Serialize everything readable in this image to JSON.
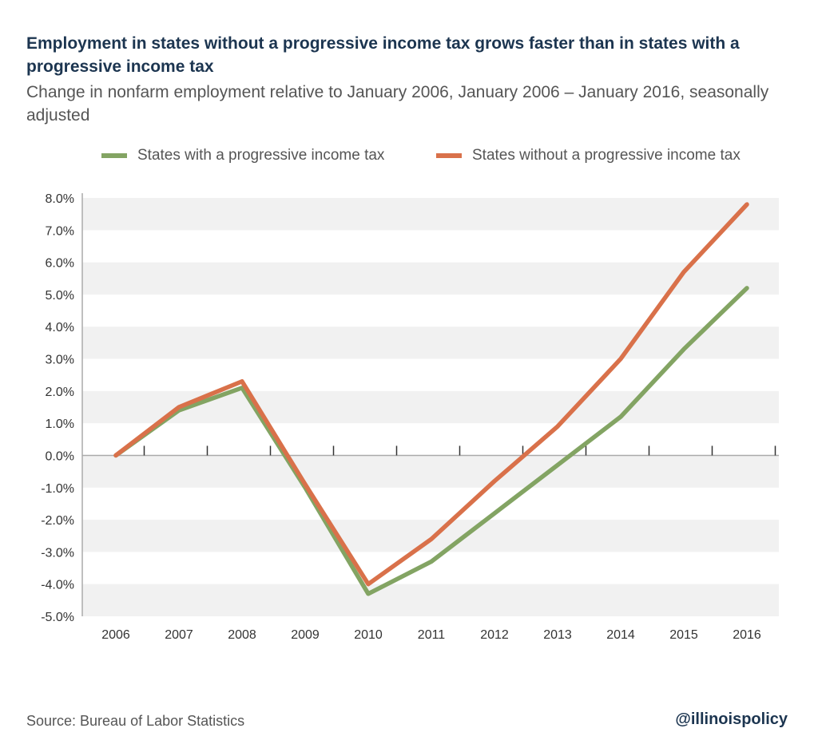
{
  "chart_data": {
    "type": "line",
    "title": "Employment in states without a progressive income tax grows faster than in states with a progressive income tax",
    "subtitle": "Change in nonfarm employment relative to January 2006, January 2006 – January 2016, seasonally adjusted",
    "xlabel": "",
    "ylabel": "",
    "categories": [
      "2006",
      "2007",
      "2008",
      "2009",
      "2010",
      "2011",
      "2012",
      "2013",
      "2014",
      "2015",
      "2016"
    ],
    "ylim": [
      -5,
      8
    ],
    "yticks": [
      "8.0%",
      "7.0%",
      "6.0%",
      "5.0%",
      "4.0%",
      "3.0%",
      "2.0%",
      "1.0%",
      "0.0%",
      "-1.0%",
      "-2.0%",
      "-3.0%",
      "-4.0%",
      "-5.0%"
    ],
    "grid": "alternating horizontal bands",
    "legend_position": "top",
    "series": [
      {
        "name": "States with a progressive income tax",
        "color": "#83a463",
        "values": [
          0.0,
          1.4,
          2.1,
          -1.0,
          -4.3,
          -3.3,
          -1.8,
          -0.3,
          1.2,
          3.3,
          5.2
        ]
      },
      {
        "name": "States without a progressive income tax",
        "color": "#d9714a",
        "values": [
          0.0,
          1.5,
          2.3,
          -0.9,
          -4.0,
          -2.6,
          -0.8,
          0.9,
          3.0,
          5.7,
          7.8
        ]
      }
    ]
  },
  "footer": {
    "source": "Source: Bureau of Labor Statistics",
    "handle": "@illinoispolicy"
  }
}
